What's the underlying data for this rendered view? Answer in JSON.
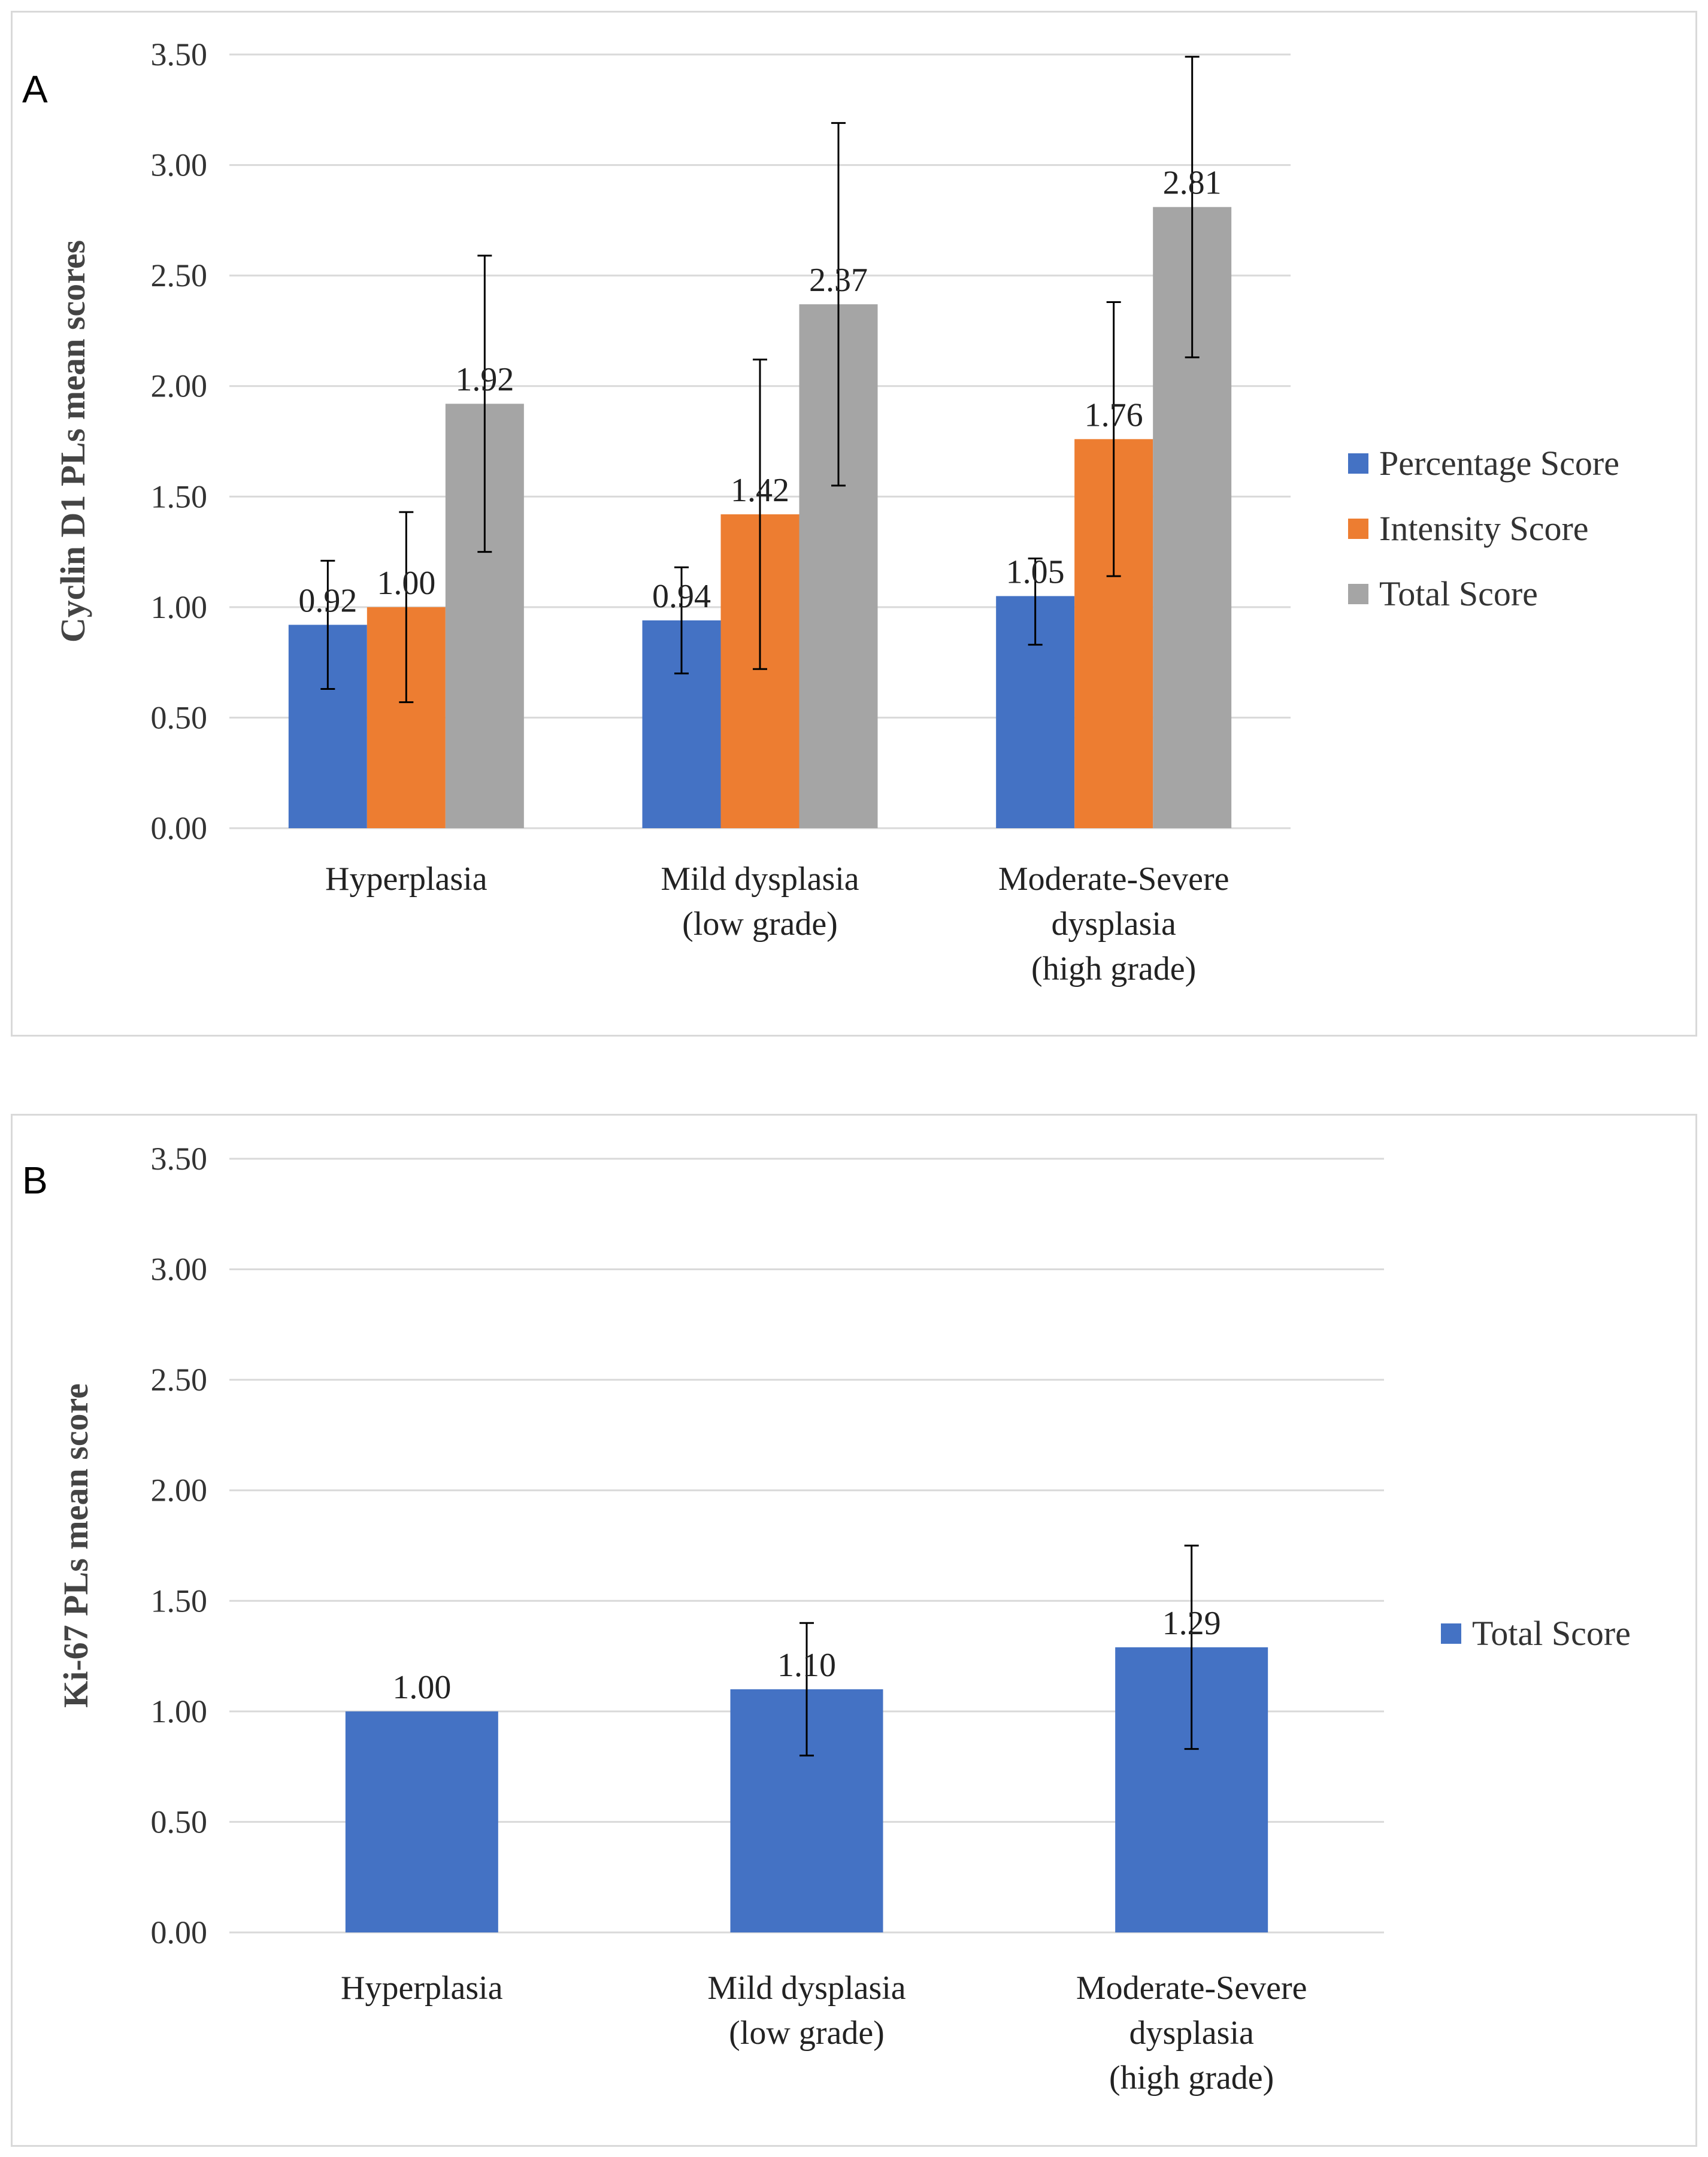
{
  "chart_data": [
    {
      "panel": "A",
      "type": "bar",
      "ylabel": "Cyclin D1 PLs mean scores",
      "xlabel": "",
      "ylim": [
        0,
        3.5
      ],
      "ticks": [
        "0.00",
        "0.50",
        "1.00",
        "1.50",
        "2.00",
        "2.50",
        "3.00",
        "3.50"
      ],
      "categories": [
        [
          "Hyperplasia"
        ],
        [
          "Mild dysplasia",
          "(low grade)"
        ],
        [
          "Moderate-Severe",
          "dysplasia",
          "(high grade)"
        ]
      ],
      "series": [
        {
          "name": "Percentage Score",
          "color": "#4472c4",
          "values": [
            0.92,
            0.94,
            1.05
          ],
          "labels": [
            "0.92",
            "0.94",
            "1.05"
          ],
          "err_low": [
            0.63,
            0.7,
            0.83
          ],
          "err_high": [
            1.21,
            1.18,
            1.22
          ]
        },
        {
          "name": "Intensity Score",
          "color": "#ed7d31",
          "values": [
            1.0,
            1.42,
            1.76
          ],
          "labels": [
            "1.00",
            "1.42",
            "1.76"
          ],
          "err_low": [
            0.57,
            0.72,
            1.14
          ],
          "err_high": [
            1.43,
            2.12,
            2.38
          ]
        },
        {
          "name": "Total Score",
          "color": "#a5a5a5",
          "values": [
            1.92,
            2.37,
            2.81
          ],
          "labels": [
            "1.92",
            "2.37",
            "2.81"
          ],
          "err_low": [
            1.25,
            1.55,
            2.13
          ],
          "err_high": [
            2.59,
            3.19,
            3.49
          ]
        }
      ],
      "legend": "right",
      "grid": true
    },
    {
      "panel": "B",
      "type": "bar",
      "ylabel": "Ki-67 PLs mean score",
      "xlabel": "",
      "ylim": [
        0,
        3.5
      ],
      "ticks": [
        "0.00",
        "0.50",
        "1.00",
        "1.50",
        "2.00",
        "2.50",
        "3.00",
        "3.50"
      ],
      "categories": [
        [
          "Hyperplasia"
        ],
        [
          "Mild dysplasia",
          "(low grade)"
        ],
        [
          "Moderate-Severe",
          "dysplasia",
          "(high grade)"
        ]
      ],
      "series": [
        {
          "name": "Total Score",
          "color": "#4472c4",
          "values": [
            1.0,
            1.1,
            1.29
          ],
          "labels": [
            "1.00",
            "1.10",
            "1.29"
          ],
          "err_low": [
            null,
            0.8,
            0.83
          ],
          "err_high": [
            null,
            1.4,
            1.75
          ]
        }
      ],
      "legend": "right",
      "grid": true
    }
  ]
}
